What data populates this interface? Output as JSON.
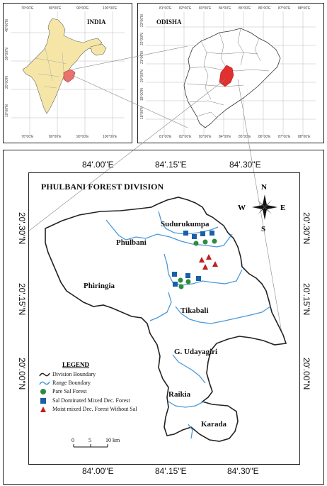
{
  "india_panel": {
    "title": "INDIA",
    "lon_ticks": [
      "70°00'E",
      "80°00'E",
      "90°00'E",
      "100°00'E"
    ],
    "lat_ticks": [
      "40°00'N",
      "30°00'N",
      "20°00'N",
      "10°00'N"
    ]
  },
  "odisha_panel": {
    "title": "ODISHA",
    "lon_ticks": [
      "81°00'E",
      "82°00'E",
      "83°00'E",
      "84°00'E",
      "85°00'E",
      "86°00'E",
      "87°00'E",
      "88°00'E"
    ],
    "lat_ticks": [
      "23°00'N",
      "22°00'N",
      "21°00'N",
      "20°00'N",
      "19°00'N",
      "18°00'N"
    ]
  },
  "main_map": {
    "title": "PHULBANI FOREST DIVISION",
    "top_lon": [
      "84'.00\"E",
      "84'.15\"E",
      "84'.30\"E"
    ],
    "bottom_lon": [
      "84'.00\"E",
      "84'.15\"E",
      "84'.30\"E"
    ],
    "left_lat": [
      "20'.30\"N",
      "20'.15\"N",
      "20'.00\"N"
    ],
    "right_lat": [
      "20'.30\"N",
      "20'.15\"N",
      "20'.00\"N"
    ],
    "places": {
      "sudurukumpa": "Sudurukumpa",
      "phulbani": "Phulbani",
      "phiringia": "Phiringia",
      "tikabali": "Tikabali",
      "g_udayagiri": "G. Udayagiri",
      "raikia": "Raikia",
      "karada": "Karada"
    },
    "compass": {
      "n": "N",
      "s": "S",
      "e": "E",
      "w": "W"
    }
  },
  "legend": {
    "title": "LEGEND",
    "items": [
      {
        "label": "Division Boundary"
      },
      {
        "label": "Range Boundary"
      },
      {
        "label": "Pare Sal Forest"
      },
      {
        "label": "Sal Dominated Mixed Dec. Forest"
      },
      {
        "label": "Moist mixed Dec. Forest Without Sal"
      }
    ]
  },
  "scale_bar": {
    "zero": "0",
    "mid": "5",
    "end": "10 km"
  },
  "colors": {
    "india_fill": "#f5e6a8",
    "odisha_highlight": "#e8736f",
    "district_highlight": "#e03030",
    "river": "#4a98d8",
    "pare_sal": "#2e8b3e",
    "sal_mixed": "#1a5fa8",
    "moist_mixed": "#c02020"
  }
}
